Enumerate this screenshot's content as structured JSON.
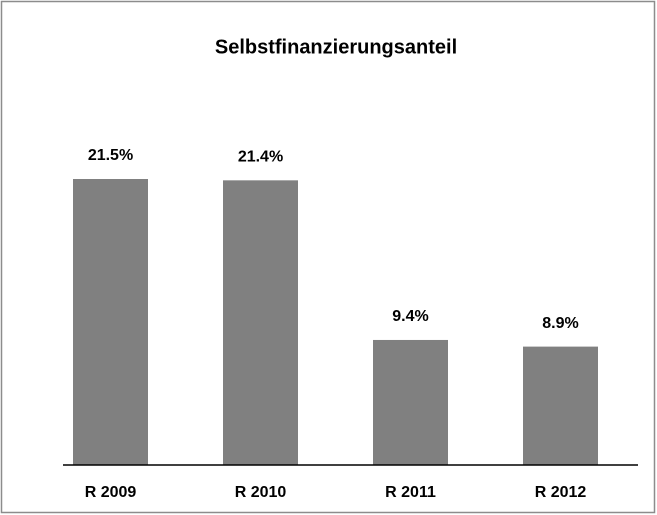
{
  "chart_data": {
    "type": "bar",
    "title": "Selbstfinanzierungsanteil",
    "categories": [
      "R 2009",
      "R 2010",
      "R 2011",
      "R 2012"
    ],
    "values": [
      21.5,
      21.4,
      9.4,
      8.9
    ],
    "value_labels": [
      "21.5%",
      "21.4%",
      "9.4%",
      "8.9%"
    ],
    "color": "#808080"
  }
}
